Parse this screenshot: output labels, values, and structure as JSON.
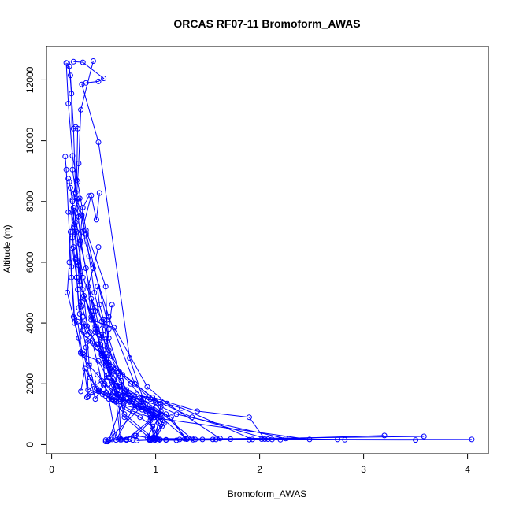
{
  "chart_data": {
    "type": "line",
    "title": "ORCAS RF07-11 Bromoform_AWAS",
    "xlabel": "Bromoform_AWAS",
    "ylabel": "Altitude (m)",
    "xlim": [
      -0.05,
      4.2
    ],
    "ylim": [
      -300,
      13100
    ],
    "xticks": [
      0,
      1,
      2,
      3,
      4
    ],
    "yticks": [
      0,
      2000,
      4000,
      6000,
      8000,
      10000,
      12000
    ],
    "grid": false,
    "legend": "none",
    "series_color": "#0000ff",
    "profiles": [
      {
        "x": [
          0.14,
          0.16,
          0.2,
          0.25,
          0.33,
          0.52,
          0.55,
          0.66,
          0.7,
          0.95,
          1.02,
          1.45
        ],
        "y": [
          12560,
          11220,
          9500,
          8650,
          7050,
          5200,
          2200,
          1580,
          900,
          200,
          180,
          170
        ]
      },
      {
        "x": [
          0.15,
          0.18,
          0.21,
          0.23,
          0.28,
          0.4,
          0.48,
          0.95,
          1.25,
          1.93,
          2.2,
          3.5
        ],
        "y": [
          12550,
          12150,
          10400,
          8300,
          6700,
          4400,
          2950,
          1500,
          1200,
          170,
          160,
          150
        ]
      },
      {
        "x": [
          0.17,
          0.19,
          0.2,
          0.24,
          0.29,
          0.32,
          0.55,
          0.8,
          1.0,
          1.35,
          2.08,
          4.04
        ],
        "y": [
          12450,
          11550,
          9050,
          8100,
          7550,
          6700,
          4200,
          2000,
          1450,
          900,
          180,
          170
        ]
      },
      {
        "x": [
          0.21,
          0.3,
          0.5,
          0.45,
          0.33,
          0.29,
          0.45,
          0.75,
          0.9,
          1.1,
          1.3,
          1.55
        ],
        "y": [
          12600,
          12580,
          12050,
          11950,
          11900,
          11850,
          9950,
          2850,
          1300,
          1000,
          180,
          170
        ]
      },
      {
        "x": [
          0.4,
          0.28,
          0.26,
          0.22,
          0.25,
          0.3,
          0.38,
          0.6,
          0.92,
          1.11,
          1.62,
          2.02
        ],
        "y": [
          12620,
          11020,
          9250,
          7150,
          6000,
          5100,
          4100,
          3850,
          1900,
          1350,
          200,
          180
        ]
      },
      {
        "x": [
          0.23,
          0.25,
          0.24,
          0.21,
          0.28,
          0.33,
          0.53,
          0.35,
          0.62,
          0.97,
          1.4,
          1.9,
          2.05,
          3.2
        ],
        "y": [
          10450,
          10400,
          8700,
          8250,
          7550,
          6950,
          4100,
          3400,
          2500,
          1550,
          1100,
          900,
          180,
          300
        ]
      },
      {
        "x": [
          0.16,
          0.17,
          0.18,
          0.2,
          0.19,
          0.21,
          0.24,
          0.48,
          0.52,
          0.8,
          1.05,
          1.2,
          2.25,
          2.75
        ],
        "y": [
          8750,
          8650,
          8450,
          8000,
          7650,
          6500,
          5500,
          3500,
          1700,
          1550,
          1250,
          1000,
          200,
          170
        ]
      },
      {
        "x": [
          0.13,
          0.14,
          0.16,
          0.19,
          0.22,
          0.26,
          0.28,
          0.45,
          0.58,
          0.7,
          0.97,
          1.15,
          1.28,
          1.38
        ],
        "y": [
          9480,
          9050,
          7650,
          5500,
          4000,
          3500,
          3000,
          2750,
          1900,
          1400,
          1150,
          900,
          190,
          170
        ]
      },
      {
        "x": [
          0.46,
          0.43,
          0.38,
          0.29,
          0.26,
          0.32,
          0.4,
          0.55,
          0.62,
          0.76,
          0.88,
          1.0,
          1.72
        ],
        "y": [
          8280,
          7400,
          8200,
          7000,
          5900,
          4800,
          4100,
          3100,
          2500,
          2000,
          1500,
          190,
          180
        ]
      },
      {
        "x": [
          0.27,
          0.22,
          0.18,
          0.17,
          0.15,
          0.21,
          0.25,
          0.35,
          0.45,
          0.58,
          0.7,
          0.98,
          1.23
        ],
        "y": [
          8100,
          7700,
          7000,
          6000,
          5000,
          4200,
          4050,
          1600,
          1750,
          1500,
          1000,
          200,
          170
        ]
      },
      {
        "x": [
          0.26,
          0.23,
          0.2,
          0.19,
          0.22,
          0.28,
          0.31,
          0.42,
          0.5,
          0.6,
          0.78,
          0.95,
          2.48
        ],
        "y": [
          7500,
          7300,
          6800,
          5850,
          4150,
          3050,
          2950,
          1500,
          1950,
          1450,
          1100,
          900,
          170
        ]
      },
      {
        "x": [
          0.36,
          0.3,
          0.27,
          0.28,
          0.31,
          0.34,
          0.49,
          0.64,
          0.75,
          0.93,
          1.05,
          1.0,
          2.82
        ],
        "y": [
          8180,
          7800,
          6600,
          5700,
          4900,
          3900,
          2900,
          2200,
          1700,
          1550,
          1350,
          200,
          160
        ]
      },
      {
        "x": [
          0.2,
          0.24,
          0.26,
          0.3,
          0.44,
          0.55,
          0.67,
          0.69,
          0.55,
          0.78,
          1.2,
          1.9
        ],
        "y": [
          6450,
          5500,
          4500,
          4000,
          3200,
          2700,
          2100,
          1500,
          150,
          150,
          140,
          160
        ]
      },
      {
        "x": [
          0.22,
          0.25,
          0.27,
          0.29,
          0.37,
          0.43,
          0.52,
          0.63,
          0.68,
          0.85,
          0.97,
          1.04,
          3.58
        ],
        "y": [
          7250,
          6200,
          5250,
          4550,
          3700,
          3300,
          2600,
          1800,
          1200,
          900,
          600,
          170,
          270
        ]
      },
      {
        "x": [
          0.2,
          0.22,
          0.25,
          0.28,
          0.29,
          0.39,
          0.48,
          0.6,
          0.86,
          1.0,
          1.36,
          1.58,
          2.12
        ],
        "y": [
          8050,
          7000,
          6000,
          4700,
          3650,
          3400,
          2100,
          1750,
          1500,
          1200,
          160,
          170,
          170
        ]
      },
      {
        "x": [
          0.24,
          0.3,
          0.42,
          0.52,
          0.55,
          0.65,
          0.55,
          0.62,
          0.8,
          0.97,
          1.08,
          1.0,
          0.72
        ],
        "y": [
          7000,
          5500,
          4500,
          3900,
          3500,
          2400,
          1500,
          150,
          1300,
          1000,
          700,
          180,
          150
        ]
      },
      {
        "x": [
          0.33,
          0.36,
          0.41,
          0.48,
          0.5,
          0.53,
          0.58,
          0.64,
          0.67,
          0.8,
          0.98,
          1.04,
          0.82
        ],
        "y": [
          6900,
          6200,
          5000,
          4050,
          3600,
          2800,
          2100,
          1650,
          160,
          300,
          200,
          160,
          130
        ]
      },
      {
        "x": [
          0.23,
          0.25,
          0.27,
          0.3,
          0.33,
          0.35,
          0.53,
          0.66,
          0.86,
          0.94,
          1.05,
          1.3,
          1.35
        ],
        "y": [
          6100,
          5100,
          4300,
          3750,
          3200,
          1800,
          2200,
          1900,
          1400,
          1200,
          900,
          180,
          200
        ]
      },
      {
        "x": [
          0.21,
          0.27,
          0.33,
          0.38,
          0.42,
          0.47,
          0.5,
          0.57,
          0.62,
          0.66,
          0.54,
          0.52,
          0.75
        ],
        "y": [
          7800,
          6700,
          5800,
          4800,
          4400,
          3600,
          3100,
          2300,
          1500,
          200,
          100,
          150,
          180
        ]
      },
      {
        "x": [
          0.45,
          0.4,
          0.35,
          0.38,
          0.42,
          0.48,
          0.55,
          0.65,
          0.75,
          0.86,
          0.95,
          0.98,
          1.1
        ],
        "y": [
          6500,
          5800,
          5200,
          4200,
          3900,
          3000,
          2600,
          1900,
          1600,
          1450,
          800,
          250,
          150
        ]
      },
      {
        "x": [
          0.58,
          0.55,
          0.52,
          0.5,
          0.6,
          0.72,
          0.82,
          1.0,
          0.96,
          1.05,
          0.92,
          1.1
        ],
        "y": [
          4600,
          3800,
          3000,
          2700,
          2400,
          1800,
          1650,
          1400,
          900,
          1000,
          250,
          160
        ]
      },
      {
        "x": [
          0.44,
          0.46,
          0.5,
          0.53,
          0.58,
          0.68,
          0.7,
          0.78,
          0.88,
          0.96,
          0.94,
          1.02
        ],
        "y": [
          5200,
          4600,
          4100,
          3400,
          2900,
          2300,
          1700,
          1500,
          1300,
          1100,
          150,
          120
        ]
      },
      {
        "x": [
          0.3,
          0.31,
          0.34,
          0.36,
          0.4,
          0.46,
          0.52,
          0.58,
          0.75,
          0.88,
          0.6,
          0.58
        ],
        "y": [
          4200,
          3900,
          3600,
          2650,
          2050,
          1750,
          1600,
          1500,
          1450,
          1300,
          350,
          170
        ]
      },
      {
        "x": [
          0.38,
          0.42,
          0.47,
          0.51,
          0.56,
          0.61,
          0.7,
          0.79,
          0.92,
          1.05,
          0.81,
          0.52
        ],
        "y": [
          4400,
          3700,
          3300,
          2900,
          2500,
          2000,
          1750,
          1500,
          1200,
          1100,
          300,
          100
        ]
      },
      {
        "x": [
          0.42,
          0.47,
          0.52,
          0.55,
          0.63,
          0.69,
          0.76,
          0.83,
          0.91,
          0.99,
          1.06,
          0.94
        ],
        "y": [
          3800,
          3300,
          2650,
          2300,
          1950,
          1700,
          1500,
          1250,
          1100,
          900,
          600,
          180
        ]
      },
      {
        "x": [
          0.28,
          0.32,
          0.37,
          0.43,
          0.49,
          0.57,
          0.62,
          0.69,
          0.87,
          1.0,
          0.72,
          0.66
        ],
        "y": [
          1750,
          2500,
          2200,
          1850,
          1650,
          1550,
          1400,
          1300,
          1150,
          950,
          170,
          160
        ]
      },
      {
        "x": [
          0.34,
          0.38,
          0.45,
          0.53,
          0.61,
          0.72,
          0.81,
          0.9,
          1.0,
          1.07,
          0.99,
          0.95
        ],
        "y": [
          1550,
          1700,
          1800,
          1700,
          1600,
          1500,
          1300,
          1150,
          1000,
          800,
          150,
          140
        ]
      },
      {
        "x": [
          0.3,
          0.36,
          0.44,
          0.51,
          0.59,
          0.66,
          0.75,
          0.84,
          0.91,
          0.99,
          1.03,
          0.97
        ],
        "y": [
          3000,
          2600,
          2300,
          2000,
          1700,
          1500,
          1400,
          1200,
          1100,
          900,
          700,
          170
        ]
      }
    ]
  }
}
